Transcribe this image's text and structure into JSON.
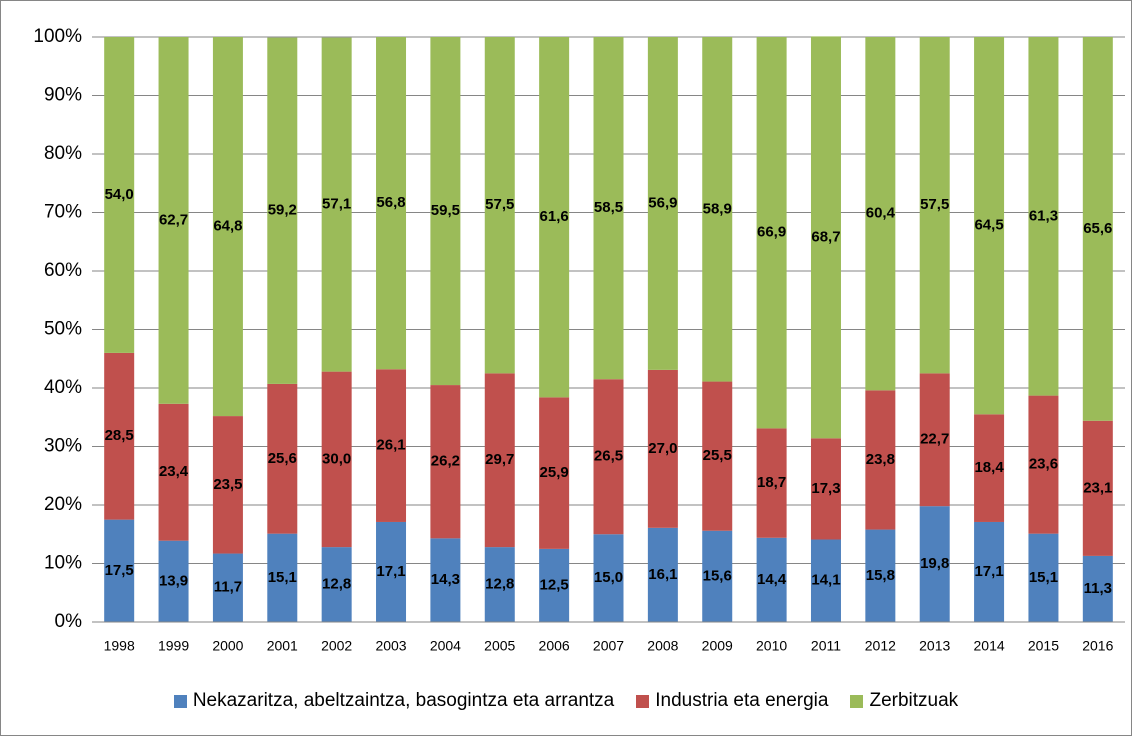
{
  "chart_data": {
    "type": "bar",
    "stacked": true,
    "categories": [
      "1998",
      "1999",
      "2000",
      "2001",
      "2002",
      "2003",
      "2004",
      "2005",
      "2006",
      "2007",
      "2008",
      "2009",
      "2010",
      "2011",
      "2012",
      "2013",
      "2014",
      "2015",
      "2016"
    ],
    "series": [
      {
        "name": "Nekazaritza, abeltzaintza, basogintza eta arrantza",
        "color": "#4f81bd",
        "values": [
          17.5,
          13.9,
          11.7,
          15.1,
          12.8,
          17.1,
          14.3,
          12.8,
          12.5,
          15.0,
          16.1,
          15.6,
          14.4,
          14.1,
          15.8,
          19.8,
          17.1,
          15.1,
          11.3
        ],
        "value_labels": [
          "17,5",
          "13,9",
          "11,7",
          "15,1",
          "12,8",
          "17,1",
          "14,3",
          "12,8",
          "12,5",
          "15,0",
          "16,1",
          "15,6",
          "14,4",
          "14,1",
          "15,8",
          "19,8",
          "17,1",
          "15,1",
          "11,3"
        ]
      },
      {
        "name": "Industria eta energia",
        "color": "#c0504d",
        "values": [
          28.5,
          23.4,
          23.5,
          25.6,
          30.0,
          26.1,
          26.2,
          29.7,
          25.9,
          26.5,
          27.0,
          25.5,
          18.7,
          17.3,
          23.8,
          22.7,
          18.4,
          23.6,
          23.1
        ],
        "value_labels": [
          "28,5",
          "23,4",
          "23,5",
          "25,6",
          "30,0",
          "26,1",
          "26,2",
          "29,7",
          "25,9",
          "26,5",
          "27,0",
          "25,5",
          "18,7",
          "17,3",
          "23,8",
          "22,7",
          "18,4",
          "23,6",
          "23,1"
        ]
      },
      {
        "name": "Zerbitzuak",
        "color": "#9bbb59",
        "values": [
          54.0,
          62.7,
          64.8,
          59.2,
          57.1,
          56.8,
          59.5,
          57.5,
          61.6,
          58.5,
          56.9,
          58.9,
          66.9,
          68.7,
          60.4,
          57.5,
          64.5,
          61.3,
          65.6
        ],
        "value_labels": [
          "54,0",
          "62,7",
          "64,8",
          "59,2",
          "57,1",
          "56,8",
          "59,5",
          "57,5",
          "61,6",
          "58,5",
          "56,9",
          "58,9",
          "66,9",
          "68,7",
          "60,4",
          "57,5",
          "64,5",
          "61,3",
          "65,6"
        ]
      }
    ],
    "ylim": [
      0,
      100
    ],
    "yticks": [
      {
        "value": 0,
        "label": "0%"
      },
      {
        "value": 10,
        "label": "10%"
      },
      {
        "value": 20,
        "label": "20%"
      },
      {
        "value": 30,
        "label": "30%"
      },
      {
        "value": 40,
        "label": "40%"
      },
      {
        "value": 50,
        "label": "50%"
      },
      {
        "value": 60,
        "label": "60%"
      },
      {
        "value": 70,
        "label": "70%"
      },
      {
        "value": 80,
        "label": "80%"
      },
      {
        "value": 90,
        "label": "90%"
      },
      {
        "value": 100,
        "label": "100%"
      }
    ],
    "grid": true,
    "legend": "bottom"
  }
}
